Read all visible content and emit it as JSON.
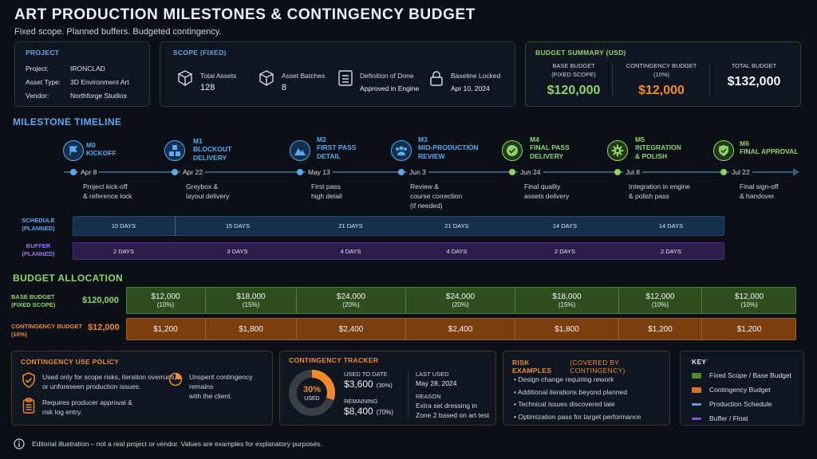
{
  "header": {
    "title": "ART PRODUCTION MILESTONES & CONTINGENCY BUDGET",
    "subtitle": "Fixed scope. Planned buffers. Budgeted contingency."
  },
  "project": {
    "heading": "PROJECT",
    "rows": [
      {
        "k": "Project:",
        "v": "IRONCLAD"
      },
      {
        "k": "Asset Type:",
        "v": "3D Environment Art"
      },
      {
        "k": "Vendor:",
        "v": "Northforge Studios"
      }
    ]
  },
  "scope": {
    "heading": "SCOPE (FIXED)",
    "items": [
      {
        "label": "Total Assets",
        "value": "128",
        "icon": "cube-grid-icon"
      },
      {
        "label": "Asset Batches",
        "value": "8",
        "icon": "box-icon"
      },
      {
        "label": "Definition of Done",
        "value": "Approved in Engine",
        "icon": "checklist-icon"
      },
      {
        "label": "Baseline Locked",
        "value": "Apr 10, 2024",
        "icon": "lock-icon"
      }
    ]
  },
  "budget_summary": {
    "heading": "BUDGET SUMMARY (USD)",
    "base_label_1": "BASE BUDGET",
    "base_label_2": "(FIXED SCOPE)",
    "base_amount": "$120,000",
    "cont_label_1": "CONTINGENCY BUDGET",
    "cont_label_2": "(10%)",
    "cont_amount": "$12,000",
    "total_label": "TOTAL BUDGET",
    "total_amount": "$132,000"
  },
  "timeline": {
    "heading": "MILESTONE TIMELINE",
    "milestones": [
      {
        "code": "M0",
        "name1": "KICKOFF",
        "name2": "",
        "date": "Apr 8",
        "desc1": "Project kick-off",
        "desc2": "& reference lock",
        "desc3": ""
      },
      {
        "code": "M1",
        "name1": "BLOCKOUT",
        "name2": "DELIVERY",
        "date": "Apr 22",
        "desc1": "Greybox &",
        "desc2": "layout delivery",
        "desc3": ""
      },
      {
        "code": "M2",
        "name1": "FIRST PASS",
        "name2": "DETAIL",
        "date": "May 13",
        "desc1": "First pass",
        "desc2": "high detail",
        "desc3": ""
      },
      {
        "code": "M3",
        "name1": "MID-PRODUCTION",
        "name2": "REVIEW",
        "date": "Jun 3",
        "desc1": "Review &",
        "desc2": "course correction",
        "desc3": "(if needed)"
      },
      {
        "code": "M4",
        "name1": "FINAL PASS",
        "name2": "DELIVERY",
        "date": "Jun 24",
        "desc1": "Final quality",
        "desc2": "assets delivery",
        "desc3": ""
      },
      {
        "code": "M5",
        "name1": "INTEGRATION",
        "name2": "& POLISH",
        "date": "Jul 8",
        "desc1": "Integration in engine",
        "desc2": "& polish pass",
        "desc3": ""
      },
      {
        "code": "M6",
        "name1": "FINAL APPROVAL",
        "name2": "",
        "date": "Jul 22",
        "desc1": "Final sign-off",
        "desc2": "& handover",
        "desc3": ""
      }
    ],
    "schedule_label_1": "SCHEDULE",
    "schedule_label_2": "(PLANNED)",
    "buffer_label_1": "BUFFER",
    "buffer_label_2": "(PLANNED)",
    "schedule": [
      "10 DAYS",
      "15 DAYS",
      "21 DAYS",
      "21 DAYS",
      "14 DAYS",
      "14 DAYS"
    ],
    "buffer": [
      "2 DAYS",
      "3 DAYS",
      "4 DAYS",
      "4 DAYS",
      "2 DAYS",
      "2 DAYS"
    ]
  },
  "allocation": {
    "heading": "BUDGET ALLOCATION",
    "base_label_1": "BASE BUDGET",
    "base_label_2": "(FIXED SCOPE)",
    "base_total": "$120,000",
    "cont_label_1": "CONTINGENCY BUDGET",
    "cont_label_2": "(10%)",
    "cont_total": "$12,000",
    "base": [
      {
        "amt": "$12,000",
        "pct": "(10%)"
      },
      {
        "amt": "$18,000",
        "pct": "(15%)"
      },
      {
        "amt": "$24,000",
        "pct": "(20%)"
      },
      {
        "amt": "$24,000",
        "pct": "(20%)"
      },
      {
        "amt": "$18,000",
        "pct": "(15%)"
      },
      {
        "amt": "$12,000",
        "pct": "(10%)"
      },
      {
        "amt": "$12,000",
        "pct": "(10%)"
      }
    ],
    "contingency": [
      "$1,200",
      "$1,800",
      "$2,400",
      "$2,400",
      "$1,800",
      "$1,200",
      "$1,200"
    ]
  },
  "policy": {
    "heading": "CONTINGENCY USE POLICY",
    "item1a": "Used only for scope risks, iteration overruns,",
    "item1b": "or unforeseen production issues.",
    "item2a": "Requires producer approval &",
    "item2b": "risk log entry.",
    "item3a": "Unspent contingency remains",
    "item3b": "with the client."
  },
  "tracker": {
    "heading": "CONTINGENCY TRACKER",
    "donut_pct": "30%",
    "donut_sub": "USED",
    "used_fraction": 0.3,
    "used_label": "USED TO DATE",
    "used_amount": "$3,600",
    "used_pct": "(30%)",
    "remaining_label": "REMAINING",
    "remaining_amount": "$8,400",
    "remaining_pct": "(70%)",
    "last_used_label": "LAST USED",
    "last_used_date": "May 28, 2024",
    "reason_label": "REASON",
    "reason1": "Extra set dressing in",
    "reason2": "Zone 2 based on art test"
  },
  "risks": {
    "heading": "RISK EXAMPLES",
    "heading_note": "(COVERED BY CONTINGENCY)",
    "items": [
      "Design change requiring rework",
      "Additional iterations beyond planned",
      "Technical issues discovered late",
      "Optimization pass for target performance"
    ]
  },
  "key": {
    "heading": "KEY",
    "items": [
      {
        "label": "Fixed Scope / Base Budget",
        "color": "#4f8a2e"
      },
      {
        "label": "Contingency Budget",
        "color": "#d8731c"
      },
      {
        "label": "Production Schedule",
        "color": "#5b9ee0"
      },
      {
        "label": "Buffer / Float",
        "color": "#8a4fd6"
      }
    ]
  },
  "footer": {
    "note": "Editorial illustration – not a real project or vendor. Values are examples for explanatory purposes."
  },
  "colors": {
    "blue": "#5aa9f0",
    "green": "#8fd36a",
    "orange": "#f08a2c",
    "purple": "#a071e8"
  }
}
